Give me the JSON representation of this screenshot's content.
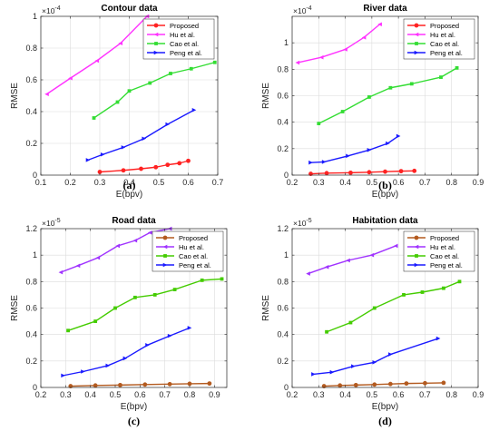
{
  "chart_data": [
    {
      "type": "line",
      "title": "Contour data",
      "xlabel": "E(bpv)",
      "ylabel": "RMSE",
      "panel_label": "(a)",
      "y_multiplier": "×10",
      "y_exponent": "-4",
      "xlim": [
        0.1,
        0.7
      ],
      "ylim": [
        0,
        1.0
      ],
      "xticks": [
        0.1,
        0.2,
        0.3,
        0.4,
        0.5,
        0.6,
        0.7
      ],
      "yticks": [
        0,
        0.2,
        0.4,
        0.6,
        0.8,
        1.0
      ],
      "ytick_labels": [
        "0",
        "0.2",
        "0.4",
        "0.6",
        "0.8",
        "1"
      ],
      "grid": true,
      "legend": "top-right",
      "series": [
        {
          "name": "Proposed",
          "color": "#ff2222",
          "marker": "circle",
          "x": [
            0.3,
            0.38,
            0.44,
            0.49,
            0.53,
            0.57,
            0.6
          ],
          "y": [
            0.02,
            0.03,
            0.04,
            0.05,
            0.065,
            0.075,
            0.09
          ]
        },
        {
          "name": "Hu et al.",
          "color": "#ff33ff",
          "marker": "triangle-left",
          "x": [
            0.12,
            0.2,
            0.29,
            0.37,
            0.46
          ],
          "y": [
            0.51,
            0.61,
            0.72,
            0.83,
            1.0
          ]
        },
        {
          "name": "Cao et al.",
          "color": "#33dd33",
          "marker": "square",
          "x": [
            0.28,
            0.36,
            0.4,
            0.47,
            0.54,
            0.61,
            0.69
          ],
          "y": [
            0.36,
            0.46,
            0.53,
            0.58,
            0.64,
            0.67,
            0.71
          ]
        },
        {
          "name": "Peng et al.",
          "color": "#1a1aff",
          "marker": "triangle-right",
          "x": [
            0.26,
            0.31,
            0.38,
            0.45,
            0.53,
            0.62
          ],
          "y": [
            0.095,
            0.13,
            0.175,
            0.23,
            0.32,
            0.41
          ]
        }
      ]
    },
    {
      "type": "line",
      "title": "River data",
      "xlabel": "E(bpv)",
      "ylabel": "RMSE",
      "panel_label": "(b)",
      "y_multiplier": "×10",
      "y_exponent": "-4",
      "xlim": [
        0.2,
        0.9
      ],
      "ylim": [
        0,
        1.2
      ],
      "xticks": [
        0.2,
        0.3,
        0.4,
        0.5,
        0.6,
        0.7,
        0.8,
        0.9
      ],
      "yticks": [
        0,
        0.2,
        0.4,
        0.6,
        0.8,
        1.0
      ],
      "ytick_labels": [
        "0",
        "0.2",
        "0.4",
        "0.6",
        "0.8",
        "1"
      ],
      "grid": true,
      "legend": "top-right",
      "series": [
        {
          "name": "Proposed",
          "color": "#ff2222",
          "marker": "circle",
          "x": [
            0.27,
            0.33,
            0.42,
            0.49,
            0.55,
            0.61,
            0.66
          ],
          "y": [
            0.01,
            0.015,
            0.018,
            0.022,
            0.026,
            0.03,
            0.032
          ]
        },
        {
          "name": "Hu et al.",
          "color": "#ff33ff",
          "marker": "triangle-left",
          "x": [
            0.22,
            0.31,
            0.4,
            0.47,
            0.53
          ],
          "y": [
            0.85,
            0.89,
            0.95,
            1.04,
            1.14
          ]
        },
        {
          "name": "Cao et al.",
          "color": "#33dd33",
          "marker": "square",
          "x": [
            0.3,
            0.39,
            0.49,
            0.57,
            0.65,
            0.76,
            0.82
          ],
          "y": [
            0.39,
            0.48,
            0.59,
            0.66,
            0.69,
            0.74,
            0.81
          ]
        },
        {
          "name": "Peng et al.",
          "color": "#1a1aff",
          "marker": "triangle-right",
          "x": [
            0.27,
            0.32,
            0.41,
            0.49,
            0.56,
            0.6
          ],
          "y": [
            0.095,
            0.1,
            0.145,
            0.19,
            0.24,
            0.295
          ]
        }
      ]
    },
    {
      "type": "line",
      "title": "Road data",
      "xlabel": "E(bpv)",
      "ylabel": "RMSE",
      "panel_label": "(c)",
      "y_multiplier": "×10",
      "y_exponent": "-5",
      "xlim": [
        0.2,
        0.95
      ],
      "ylim": [
        0,
        1.2
      ],
      "xticks": [
        0.2,
        0.3,
        0.4,
        0.5,
        0.6,
        0.7,
        0.8,
        0.9
      ],
      "yticks": [
        0,
        0.2,
        0.4,
        0.6,
        0.8,
        1.0,
        1.2
      ],
      "ytick_labels": [
        "0",
        "0.2",
        "0.4",
        "0.6",
        "0.8",
        "1",
        "1.2"
      ],
      "grid": true,
      "legend": "top-right",
      "series": [
        {
          "name": "Proposed",
          "color": "#b35a1f",
          "marker": "circle",
          "x": [
            0.32,
            0.42,
            0.52,
            0.62,
            0.72,
            0.8,
            0.88
          ],
          "y": [
            0.01,
            0.015,
            0.018,
            0.022,
            0.025,
            0.028,
            0.03
          ]
        },
        {
          "name": "Hu et al.",
          "color": "#a033ff",
          "marker": "triangle-left",
          "x": [
            0.28,
            0.35,
            0.43,
            0.51,
            0.58,
            0.64,
            0.72
          ],
          "y": [
            0.87,
            0.92,
            0.98,
            1.07,
            1.11,
            1.17,
            1.2
          ]
        },
        {
          "name": "Cao et al.",
          "color": "#44cc00",
          "marker": "square",
          "x": [
            0.31,
            0.42,
            0.5,
            0.58,
            0.66,
            0.74,
            0.85,
            0.93
          ],
          "y": [
            0.43,
            0.5,
            0.6,
            0.68,
            0.7,
            0.74,
            0.81,
            0.82
          ]
        },
        {
          "name": "Peng et al.",
          "color": "#1a1aff",
          "marker": "triangle-right",
          "x": [
            0.29,
            0.37,
            0.47,
            0.54,
            0.63,
            0.72,
            0.8
          ],
          "y": [
            0.09,
            0.12,
            0.165,
            0.22,
            0.32,
            0.39,
            0.45
          ]
        }
      ]
    },
    {
      "type": "line",
      "title": "Habitation data",
      "xlabel": "E(bpv)",
      "ylabel": "RMSE",
      "panel_label": "(d)",
      "y_multiplier": "×10",
      "y_exponent": "-5",
      "xlim": [
        0.2,
        0.9
      ],
      "ylim": [
        0,
        1.2
      ],
      "xticks": [
        0.2,
        0.3,
        0.4,
        0.5,
        0.6,
        0.7,
        0.8,
        0.9
      ],
      "yticks": [
        0,
        0.2,
        0.4,
        0.6,
        0.8,
        1.0,
        1.2
      ],
      "ytick_labels": [
        "0",
        "0.2",
        "0.4",
        "0.6",
        "0.8",
        "1",
        "1.2"
      ],
      "grid": true,
      "legend": "top-right",
      "series": [
        {
          "name": "Proposed",
          "color": "#b35a1f",
          "marker": "circle",
          "x": [
            0.32,
            0.38,
            0.44,
            0.51,
            0.57,
            0.63,
            0.7,
            0.77
          ],
          "y": [
            0.01,
            0.015,
            0.018,
            0.022,
            0.026,
            0.03,
            0.032,
            0.035
          ]
        },
        {
          "name": "Hu et al.",
          "color": "#a033ff",
          "marker": "triangle-left",
          "x": [
            0.26,
            0.33,
            0.41,
            0.5,
            0.59
          ],
          "y": [
            0.86,
            0.91,
            0.96,
            1.0,
            1.07
          ]
        },
        {
          "name": "Cao et al.",
          "color": "#44cc00",
          "marker": "square",
          "x": [
            0.33,
            0.42,
            0.51,
            0.62,
            0.69,
            0.77,
            0.83
          ],
          "y": [
            0.42,
            0.49,
            0.6,
            0.7,
            0.72,
            0.75,
            0.8
          ]
        },
        {
          "name": "Peng et al.",
          "color": "#1a1aff",
          "marker": "triangle-right",
          "x": [
            0.28,
            0.35,
            0.43,
            0.51,
            0.57,
            0.75
          ],
          "y": [
            0.1,
            0.115,
            0.16,
            0.19,
            0.25,
            0.37
          ]
        }
      ]
    }
  ]
}
